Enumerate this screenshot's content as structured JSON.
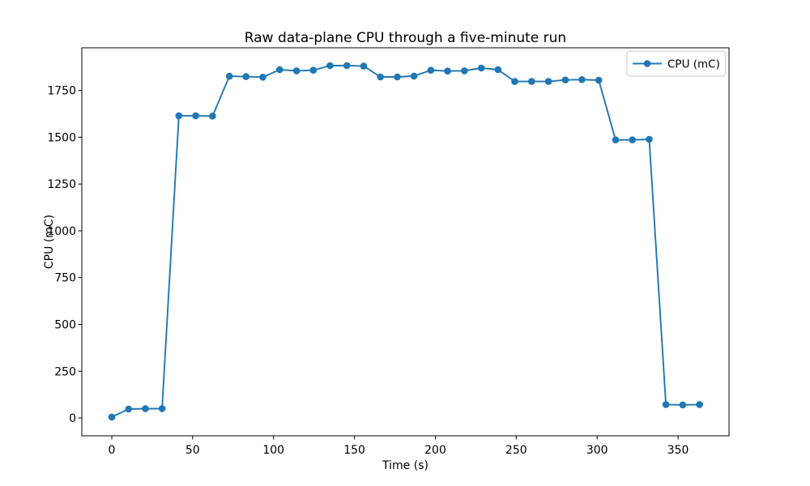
{
  "chart_data": {
    "type": "line",
    "title": "Raw data-plane CPU through a five-minute run",
    "xlabel": "Time (s)",
    "ylabel": "CPU (mC)",
    "legend": {
      "position": "upper right",
      "entries": [
        "CPU (mC)"
      ]
    },
    "xlim": [
      -18.5,
      381.5
    ],
    "ylim": [
      -95,
      1978
    ],
    "xticks": [
      0,
      50,
      100,
      150,
      200,
      250,
      300,
      350
    ],
    "yticks": [
      0,
      250,
      500,
      750,
      1000,
      1250,
      1500,
      1750
    ],
    "grid": false,
    "line_color": "#1f77b4",
    "marker": "circle",
    "series": [
      {
        "name": "CPU (mC)",
        "x": [
          0,
          10.4,
          20.8,
          31.1,
          41.5,
          51.9,
          62.3,
          72.7,
          83.0,
          93.4,
          103.8,
          114.2,
          124.6,
          134.9,
          145.3,
          155.7,
          166.1,
          176.5,
          186.8,
          197.2,
          207.6,
          218.0,
          228.4,
          238.7,
          249.1,
          259.5,
          269.9,
          280.3,
          290.6,
          301.0,
          311.4,
          321.8,
          332.2,
          342.5,
          352.9,
          363.3
        ],
        "y": [
          5,
          48,
          50,
          50,
          1615,
          1615,
          1613,
          1826,
          1824,
          1821,
          1861,
          1855,
          1858,
          1883,
          1883,
          1880,
          1822,
          1822,
          1827,
          1858,
          1854,
          1855,
          1870,
          1861,
          1798,
          1798,
          1798,
          1806,
          1808,
          1805,
          1486,
          1486,
          1489,
          72,
          70,
          72
        ]
      }
    ]
  }
}
